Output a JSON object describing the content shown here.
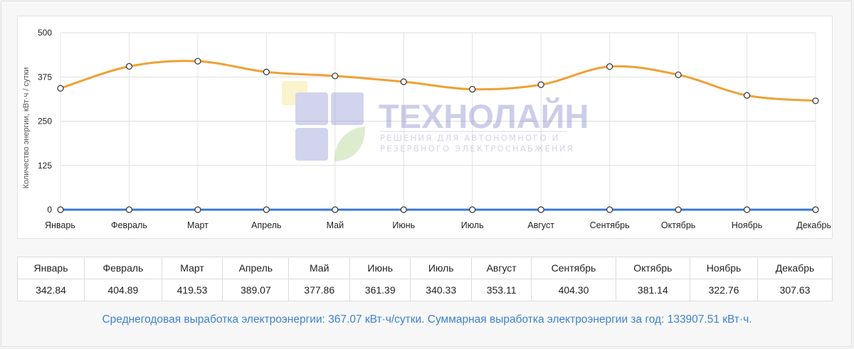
{
  "chart_data": {
    "type": "line",
    "ylabel": "Количество энергии, кВт·ч / сутки",
    "xlabel": "",
    "ylim": [
      0,
      500
    ],
    "yticks": [
      0,
      125,
      250,
      375,
      500
    ],
    "categories": [
      "Январь",
      "Февраль",
      "Март",
      "Апрель",
      "Май",
      "Июнь",
      "Июль",
      "Август",
      "Сентябрь",
      "Октябрь",
      "Ноябрь",
      "Декабрь"
    ],
    "series": [
      {
        "values": [
          342.84,
          404.89,
          419.53,
          389.07,
          377.86,
          361.39,
          340.33,
          353.11,
          404.3,
          381.14,
          322.76,
          307.63
        ],
        "color": "#f0a035"
      },
      {
        "values": [
          0,
          0,
          0,
          0,
          0,
          0,
          0,
          0,
          0,
          0,
          0,
          0
        ],
        "color": "#3a78d6"
      }
    ],
    "grid": true,
    "watermark": {
      "brand": "ТЕХНОЛАЙН",
      "tagline_1": "РЕШЕНИЯ ДЛЯ АВТОНОМНОГО И",
      "tagline_2": "РЕЗЕРВНОГО ЭЛЕКТРОСНАБЖЕНИЯ"
    }
  },
  "table": {
    "months": [
      "Январь",
      "Февраль",
      "Март",
      "Апрель",
      "Май",
      "Июнь",
      "Июль",
      "Август",
      "Сентябрь",
      "Октябрь",
      "Ноябрь",
      "Декабрь"
    ],
    "values": [
      "342.84",
      "404.89",
      "419.53",
      "389.07",
      "377.86",
      "361.39",
      "340.33",
      "353.11",
      "404.30",
      "381.14",
      "322.76",
      "307.63"
    ]
  },
  "summary": {
    "text": "Среднегодовая выработка электроэнергии: 367.07 кВт·ч/сутки. Суммарная выработка электроэнергии за год: 133907.51 кВт·ч."
  }
}
